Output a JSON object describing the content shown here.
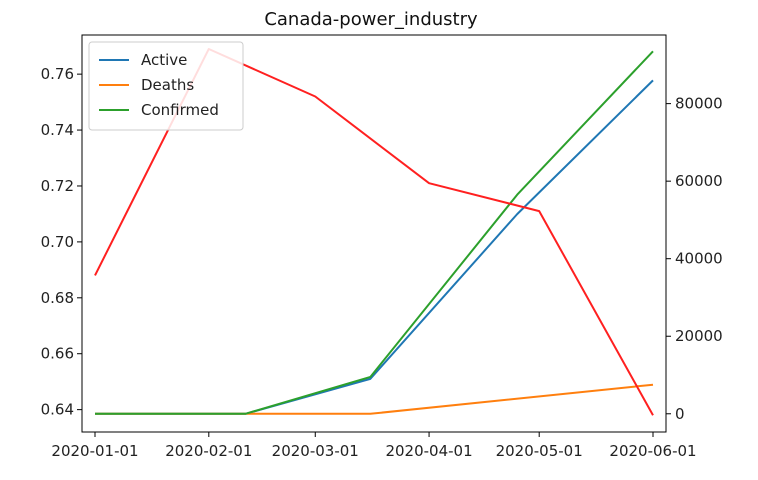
{
  "chart_data": {
    "type": "line",
    "title": "Canada-power_industry",
    "xlabel": "",
    "ylabel_left": "",
    "ylabel_right": "",
    "x_tick_labels": [
      "2020-01-01",
      "2020-02-01",
      "2020-03-01",
      "2020-04-01",
      "2020-05-01",
      "2020-06-01"
    ],
    "left_axis": {
      "ylim": [
        0.632,
        0.774
      ],
      "ticks": [
        0.64,
        0.66,
        0.68,
        0.7,
        0.72,
        0.74,
        0.76
      ],
      "tick_labels": [
        "0.64",
        "0.66",
        "0.68",
        "0.70",
        "0.72",
        "0.74",
        "0.76"
      ]
    },
    "right_axis": {
      "ylim": [
        -4700,
        97700
      ],
      "ticks": [
        0,
        20000,
        40000,
        60000,
        80000
      ],
      "tick_labels": [
        "0",
        "20000",
        "40000",
        "60000",
        "80000"
      ]
    },
    "power_series": {
      "axis": "left",
      "color": "#ff2020",
      "points": [
        {
          "x": "2020-01-01",
          "y": 0.688
        },
        {
          "x": "2020-02-01",
          "y": 0.769
        },
        {
          "x": "2020-03-01",
          "y": 0.752
        },
        {
          "x": "2020-04-01",
          "y": 0.721
        },
        {
          "x": "2020-05-01",
          "y": 0.711
        },
        {
          "x": "2020-06-01",
          "y": 0.638
        }
      ]
    },
    "series": [
      {
        "name": "Active",
        "axis": "right",
        "color": "#1f77b4",
        "points": [
          {
            "x": "2020-01-01",
            "y": 0
          },
          {
            "x": "2020-02-11",
            "y": 0
          },
          {
            "x": "2020-03-16",
            "y": 9000
          },
          {
            "x": "2020-04-25",
            "y": 51500
          },
          {
            "x": "2020-06-01",
            "y": 86000
          }
        ]
      },
      {
        "name": "Deaths",
        "axis": "right",
        "color": "#ff7f0e",
        "points": [
          {
            "x": "2020-01-01",
            "y": 0
          },
          {
            "x": "2020-03-16",
            "y": 0
          },
          {
            "x": "2020-06-01",
            "y": 7500
          }
        ]
      },
      {
        "name": "Confirmed",
        "axis": "right",
        "color": "#2ca02c",
        "points": [
          {
            "x": "2020-01-01",
            "y": 0
          },
          {
            "x": "2020-02-11",
            "y": 0
          },
          {
            "x": "2020-03-16",
            "y": 9500
          },
          {
            "x": "2020-04-25",
            "y": 56500
          },
          {
            "x": "2020-06-01",
            "y": 93500
          }
        ]
      }
    ],
    "legend": {
      "placement": "top-left",
      "entries": [
        "Active",
        "Deaths",
        "Confirmed"
      ]
    }
  }
}
